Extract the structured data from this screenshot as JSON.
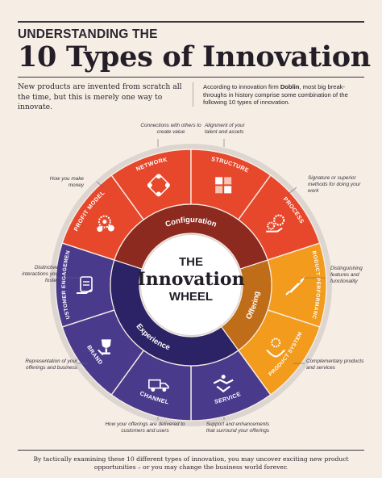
{
  "header": {
    "kicker": "UNDERSTANDING THE",
    "title": "10 Types of Innovation"
  },
  "intro": {
    "left": "New products are invented from scratch all the time, but this is merely one way to innovate.",
    "right_prefix": "According to innovation firm ",
    "right_firm": "Doblin",
    "right_suffix": ", most big break-throughs in history comprise some combination of the following 10 types of innovation."
  },
  "center": {
    "line1": "THE",
    "line2": "Innovation",
    "line3": "WHEEL"
  },
  "categories": [
    {
      "label": "Configuration",
      "color": "#8c2a20"
    },
    {
      "label": "Offering",
      "color": "#c06d1a"
    },
    {
      "label": "Experience",
      "color": "#2c2366"
    }
  ],
  "segments": [
    {
      "label": "PROFIT MODEL",
      "icon": "gear-coins-icon",
      "color": "#e7472b"
    },
    {
      "label": "NETWORK",
      "icon": "network-hands-icon",
      "color": "#e7472b"
    },
    {
      "label": "STRUCTURE",
      "icon": "puzzle-icon",
      "color": "#e7472b"
    },
    {
      "label": "PROCESS",
      "icon": "hand-gears-icon",
      "color": "#e7472b"
    },
    {
      "label": "PRODUCT PERFORMANCE",
      "icon": "rocket-icon",
      "color": "#f29b1c"
    },
    {
      "label": "PRODUCT SYSTEM",
      "icon": "hand-gears-system-icon",
      "color": "#f29b1c"
    },
    {
      "label": "SERVICE",
      "icon": "handshake-icon",
      "color": "#4a3a8c"
    },
    {
      "label": "CHANNEL",
      "icon": "truck-icon",
      "color": "#4a3a8c"
    },
    {
      "label": "BRAND",
      "icon": "trophy-icon",
      "color": "#4a3a8c"
    },
    {
      "label": "CUSTOMER ENGAGEMENT",
      "icon": "hand-phone-icon",
      "color": "#4a3a8c"
    }
  ],
  "annotations": {
    "profit_model": "How you make money",
    "network": "Connections with others to create value",
    "structure": "Alignment of your talent and assets",
    "process": "Signature or superior methods for doing your work",
    "product_performance": "Distinguishing features and functionality",
    "product_system": "Complementary products and services",
    "service": "Support and enhancements that surround your offerings",
    "channel": "How your offerings are delivered to customers and users",
    "brand": "Representation of your offerings and business",
    "customer_engagement": "Distinctive interactions you foster"
  },
  "footer": "By tactically examining these 10 different types of innovation, you may uncover exciting new product opportunities – or you may change the business world forever."
}
